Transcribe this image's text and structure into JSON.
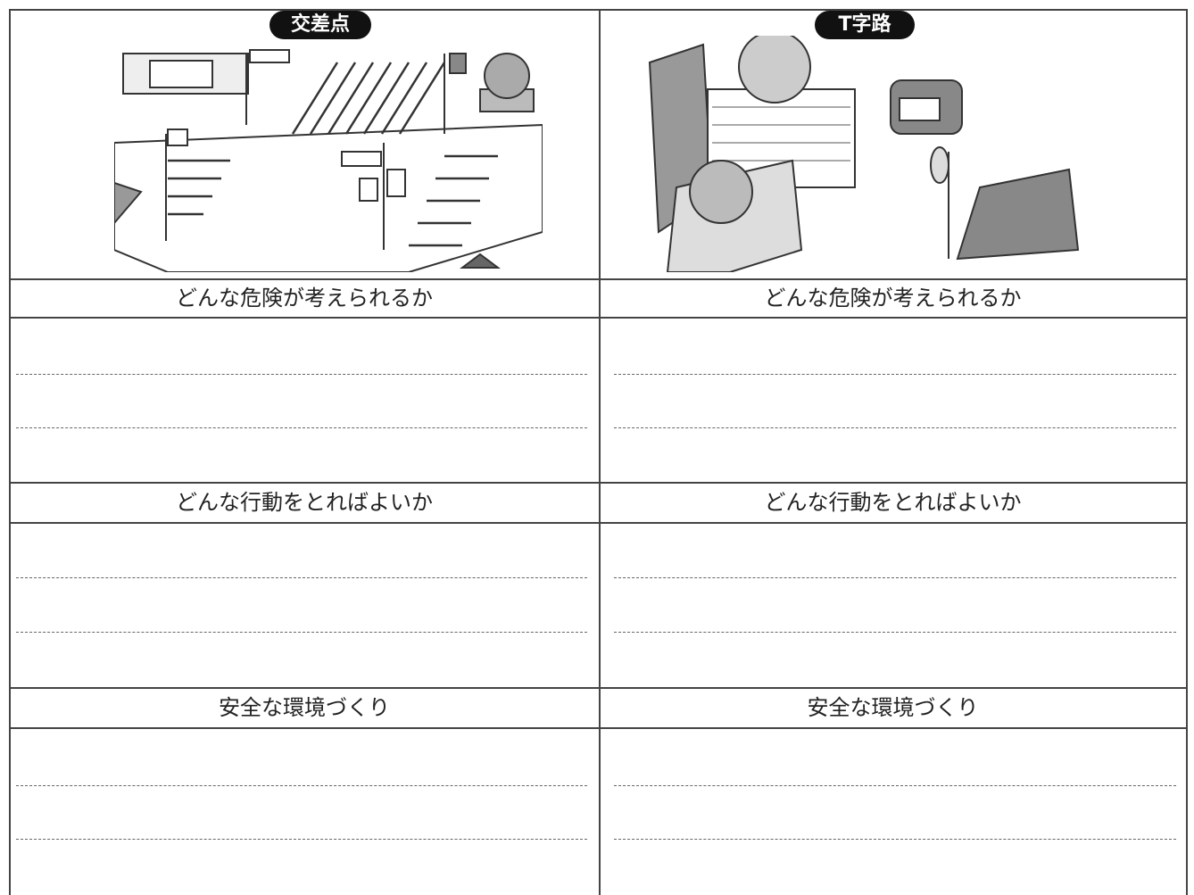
{
  "panels": [
    {
      "badge": "交差点",
      "headers": [
        "どんな危険が考えられるか",
        "どんな行動をとればよいか",
        "安全な環境づくり"
      ]
    },
    {
      "badge": "T字路",
      "headers": [
        "どんな危険が考えられるか",
        "どんな行動をとればよいか",
        "安全な環境づくり"
      ]
    }
  ]
}
